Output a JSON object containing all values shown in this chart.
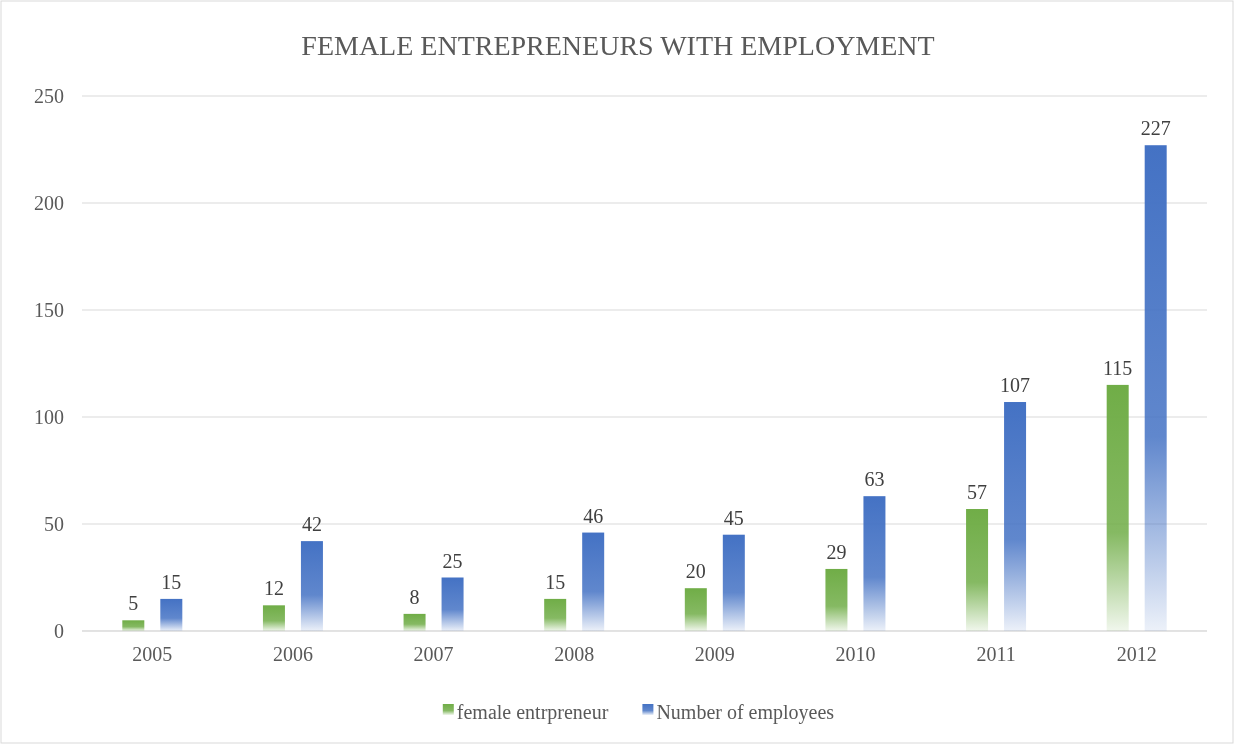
{
  "chart_data": {
    "type": "bar",
    "title": "FEMALE ENTREPRENEURS WITH EMPLOYMENT",
    "categories": [
      "2005",
      "2006",
      "2007",
      "2008",
      "2009",
      "2010",
      "2011",
      "2012"
    ],
    "series": [
      {
        "name": "female entrpreneur",
        "color": "#70ad47",
        "values": [
          5,
          12,
          8,
          15,
          20,
          29,
          57,
          115
        ]
      },
      {
        "name": "Number of employees",
        "color": "#4472c4",
        "values": [
          15,
          42,
          25,
          46,
          45,
          63,
          107,
          227
        ]
      }
    ],
    "ylim": [
      0,
      250
    ],
    "yticks": [
      0,
      50,
      100,
      150,
      200,
      250
    ],
    "grid": "y",
    "legend": "bottom",
    "data_labels": true
  }
}
